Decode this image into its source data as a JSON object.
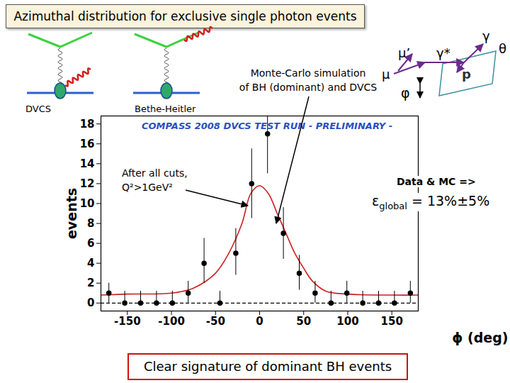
{
  "header": {
    "title": "Azimuthal distribution for exclusive single photon events"
  },
  "diagram_labels": [
    "DVCS",
    "Bethe-Heitler"
  ],
  "kinematics_labels": {
    "beam": "μ",
    "scattered": "μ’",
    "virtual_photon": "γ*",
    "photon": "γ",
    "theta": "θ",
    "phi": "φ",
    "proton": "p"
  },
  "annotations": {
    "mc": [
      "Monte-Carlo simulation",
      "of BH (dominant) and DVCS"
    ],
    "cuts": [
      "After all cuts,",
      "Q²>1GeV²"
    ],
    "data_mc": "Data & MC =>",
    "efficiency": {
      "symbol": "ε",
      "subscript": "global",
      "text": " = 13%±5%"
    }
  },
  "footer": "Clear signature of dominant BH events",
  "chart_data": {
    "type": "scatter",
    "title": "COMPASS 2008 DVCS TEST RUN  - PRELIMINARY -",
    "x_label": "ϕ (deg)",
    "y_label": "events",
    "xlim": [
      -180,
      180
    ],
    "ylim": [
      -0.8,
      18.8
    ],
    "xticks": [
      -150,
      -100,
      -50,
      0,
      50,
      100,
      150
    ],
    "yticks": [
      0,
      2,
      4,
      6,
      8,
      10,
      12,
      14,
      16,
      18
    ],
    "baseline": 0,
    "series": [
      {
        "type": "scatter",
        "color": "#000000",
        "marker": "circle",
        "x": [
          -171,
          -153,
          -135,
          -117,
          -99,
          -81,
          -63,
          -45,
          -27,
          -9,
          9,
          27,
          45,
          63,
          81,
          99,
          117,
          135,
          153,
          171
        ],
        "values": [
          1,
          0,
          0,
          0,
          0,
          1,
          4,
          0,
          5,
          12,
          17,
          7,
          3,
          1,
          0,
          1,
          0,
          0,
          0,
          1
        ],
        "error_minus": [
          1,
          0,
          0,
          0,
          0,
          1,
          2,
          0,
          2.2,
          3.5,
          4,
          2.6,
          1.7,
          1,
          0,
          1,
          0,
          0,
          0,
          1
        ],
        "error_plus": [
          1,
          1.2,
          1.2,
          1.2,
          1.2,
          1.2,
          2.5,
          1.2,
          2.5,
          3.5,
          4,
          2.6,
          1.8,
          1.2,
          1.2,
          1.2,
          1.2,
          1.2,
          1.2,
          1.2
        ]
      },
      {
        "type": "line",
        "color": "#cc2222",
        "line_style": "solid",
        "x": [
          -180,
          -150,
          -100,
          -75,
          -50,
          -35,
          -20,
          -10,
          0,
          10,
          20,
          30,
          40,
          50,
          60,
          75,
          100,
          150,
          180
        ],
        "values": [
          0.8,
          0.9,
          1.0,
          1.5,
          3,
          5,
          8,
          11,
          11.8,
          11,
          9,
          7,
          5,
          3.5,
          2.2,
          1.2,
          0.9,
          0.8,
          0.8
        ]
      }
    ]
  }
}
